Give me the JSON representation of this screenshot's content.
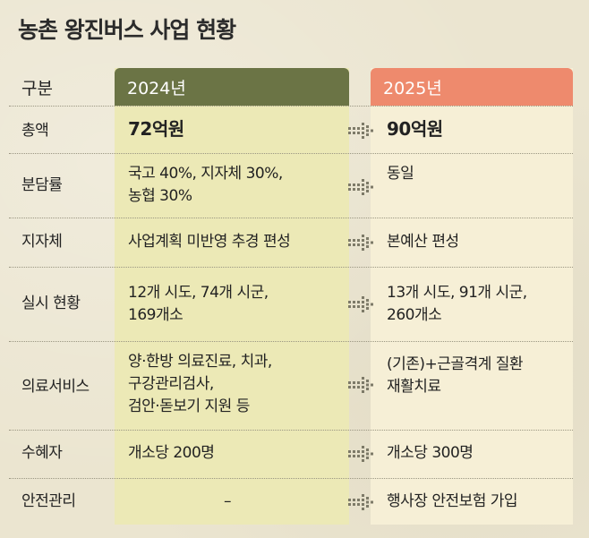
{
  "title": "농촌 왕진버스 사업 현황",
  "header": {
    "label": "구분",
    "col_2024": "2024년",
    "col_2025": "2025년"
  },
  "rows": [
    {
      "label": "총액",
      "y2024": "72억원",
      "y2025": "90억원"
    },
    {
      "label": "분담률",
      "y2024": [
        "국고 40%, 지자체 30%,",
        "농협 30%"
      ],
      "y2025": "동일"
    },
    {
      "label": "지자체",
      "y2024": "사업계획 미반영 추경 편성",
      "y2025": "본예산 편성"
    },
    {
      "label": "실시 현황",
      "y2024": [
        "12개 시도, 74개 시군,",
        "169개소"
      ],
      "y2025": [
        "13개 시도, 91개 시군,",
        "260개소"
      ]
    },
    {
      "label": "의료서비스",
      "y2024": [
        "양·한방 의료진료, 치과,",
        "구강관리검사,",
        "검안·돋보기 지원 등"
      ],
      "y2025": [
        "(기존)+근골격계 질환",
        "재활치료"
      ]
    },
    {
      "label": "수혜자",
      "y2024": "개소당 200명",
      "y2025": "개소당 300명"
    },
    {
      "label": "안전관리",
      "y2024": "–",
      "y2025": "행사장 안전보험 가입"
    }
  ],
  "colors": {
    "header_2024": "#6b7445",
    "header_2025": "#ee8a6d",
    "column_2024_bg": "#ece9b6",
    "column_2025_bg": "#f6efd6",
    "arrow": "#7d7a68"
  },
  "icons": {
    "arrow": "dotted-right-arrow-icon"
  }
}
